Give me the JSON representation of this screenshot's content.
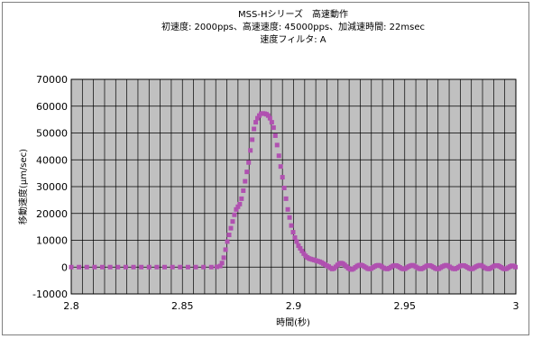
{
  "chart_data": {
    "type": "scatter",
    "title_lines": [
      "MSS-Hシリーズ　高速動作",
      "初速度: 2000pps、高速速度: 45000pps、加減速時間: 22msec",
      "速度フィルタ: A"
    ],
    "xlabel": "時間(秒)",
    "ylabel": "移動速度(μm/sec)",
    "xlim": [
      2.8,
      3.0
    ],
    "ylim": [
      -10000,
      70000
    ],
    "xticks": [
      "2.8",
      "2.85",
      "2.9",
      "2.95",
      "3"
    ],
    "xtick_values": [
      2.8,
      2.85,
      2.9,
      2.95,
      3.0
    ],
    "yticks": [
      "70000",
      "60000",
      "50000",
      "40000",
      "30000",
      "20000",
      "10000",
      "0",
      "-10000"
    ],
    "ytick_values": [
      70000,
      60000,
      50000,
      40000,
      30000,
      20000,
      10000,
      0,
      -10000
    ],
    "grid": true,
    "x_minor_step": 0.005,
    "marker_color": "#b051b0",
    "series": [
      {
        "marker": "square",
        "points": [
          [
            2.8,
            0
          ],
          [
            2.8035,
            0
          ],
          [
            2.807,
            0
          ],
          [
            2.8105,
            0
          ],
          [
            2.814,
            0
          ],
          [
            2.8175,
            0
          ],
          [
            2.821,
            0
          ],
          [
            2.8245,
            0
          ],
          [
            2.828,
            0
          ],
          [
            2.8315,
            0
          ],
          [
            2.835,
            0
          ],
          [
            2.8385,
            0
          ],
          [
            2.842,
            0
          ],
          [
            2.8455,
            0
          ],
          [
            2.849,
            0
          ],
          [
            2.8525,
            0
          ],
          [
            2.856,
            0
          ],
          [
            2.8595,
            0
          ],
          [
            2.863,
            0
          ],
          [
            2.8655,
            100
          ],
          [
            2.867,
            400
          ],
          [
            2.8678,
            1500
          ],
          [
            2.8686,
            3500
          ],
          [
            2.8694,
            6500
          ],
          [
            2.8702,
            9500
          ],
          [
            2.871,
            12000
          ],
          [
            2.8718,
            14500
          ],
          [
            2.8726,
            17000
          ],
          [
            2.8734,
            19500
          ],
          [
            2.8742,
            21500
          ],
          [
            2.875,
            22500
          ],
          [
            2.8758,
            23500
          ],
          [
            2.8766,
            25500
          ],
          [
            2.8774,
            28500
          ],
          [
            2.8782,
            32000
          ],
          [
            2.879,
            35500
          ],
          [
            2.8798,
            39000
          ],
          [
            2.8806,
            43500
          ],
          [
            2.8814,
            47500
          ],
          [
            2.8822,
            51500
          ],
          [
            2.883,
            54000
          ],
          [
            2.8838,
            55500
          ],
          [
            2.8846,
            56500
          ],
          [
            2.8854,
            57200
          ],
          [
            2.8862,
            57300
          ],
          [
            2.887,
            57200
          ],
          [
            2.8878,
            57000
          ],
          [
            2.8886,
            56500
          ],
          [
            2.8894,
            55500
          ],
          [
            2.8902,
            54000
          ],
          [
            2.891,
            52000
          ],
          [
            2.8918,
            49000
          ],
          [
            2.8926,
            45500
          ],
          [
            2.8934,
            41500
          ],
          [
            2.8942,
            37500
          ],
          [
            2.895,
            33500
          ],
          [
            2.8958,
            29500
          ],
          [
            2.8966,
            25500
          ],
          [
            2.8974,
            21500
          ],
          [
            2.8982,
            18500
          ],
          [
            2.899,
            15500
          ],
          [
            2.8998,
            13000
          ],
          [
            2.9006,
            11000
          ],
          [
            2.9014,
            9500
          ],
          [
            2.9022,
            8000
          ],
          [
            2.903,
            7000
          ],
          [
            2.9038,
            6000
          ],
          [
            2.9046,
            5000
          ],
          [
            2.9054,
            4200
          ],
          [
            2.9062,
            3600
          ],
          [
            2.907,
            3200
          ],
          [
            2.9078,
            3000
          ],
          [
            2.9086,
            2800
          ],
          [
            2.9094,
            2600
          ],
          [
            2.9102,
            2400
          ],
          [
            2.911,
            2200
          ],
          [
            2.9118,
            2000
          ],
          [
            2.9126,
            1700
          ],
          [
            2.9134,
            1300
          ],
          [
            2.9142,
            900
          ],
          [
            2.915,
            500
          ],
          [
            2.9158,
            200
          ],
          [
            2.9166,
            -300
          ],
          [
            2.9174,
            -700
          ],
          [
            2.9182,
            -500
          ],
          [
            2.919,
            100
          ],
          [
            2.9198,
            800
          ],
          [
            2.9206,
            1300
          ],
          [
            2.9214,
            1500
          ],
          [
            2.9222,
            1300
          ],
          [
            2.923,
            800
          ],
          [
            2.9238,
            200
          ],
          [
            2.9246,
            -400
          ],
          [
            2.9254,
            -800
          ],
          [
            2.9262,
            -900
          ],
          [
            2.927,
            -600
          ],
          [
            2.9278,
            -100
          ],
          [
            2.9286,
            400
          ],
          [
            2.9294,
            700
          ],
          [
            2.9302,
            800
          ],
          [
            2.931,
            600
          ],
          [
            2.9318,
            200
          ],
          [
            2.9326,
            -200
          ],
          [
            2.9334,
            -600
          ],
          [
            2.9342,
            -700
          ],
          [
            2.935,
            -500
          ],
          [
            2.9358,
            -100
          ],
          [
            2.9366,
            300
          ],
          [
            2.9374,
            600
          ],
          [
            2.9382,
            700
          ],
          [
            2.939,
            500
          ],
          [
            2.9398,
            100
          ],
          [
            2.9406,
            -300
          ],
          [
            2.9414,
            -600
          ],
          [
            2.9422,
            -700
          ],
          [
            2.943,
            -400
          ],
          [
            2.9438,
            0
          ],
          [
            2.9446,
            400
          ],
          [
            2.9454,
            600
          ],
          [
            2.9462,
            600
          ],
          [
            2.947,
            300
          ],
          [
            2.9478,
            -100
          ],
          [
            2.9486,
            -500
          ],
          [
            2.9494,
            -700
          ],
          [
            2.9502,
            -600
          ],
          [
            2.951,
            -200
          ],
          [
            2.9518,
            200
          ],
          [
            2.9526,
            500
          ],
          [
            2.9534,
            700
          ],
          [
            2.9542,
            500
          ],
          [
            2.955,
            100
          ],
          [
            2.9558,
            -300
          ],
          [
            2.9566,
            -600
          ],
          [
            2.9574,
            -700
          ],
          [
            2.9582,
            -400
          ],
          [
            2.959,
            0
          ],
          [
            2.9598,
            400
          ],
          [
            2.9606,
            600
          ],
          [
            2.9614,
            600
          ],
          [
            2.9622,
            300
          ],
          [
            2.963,
            -100
          ],
          [
            2.9638,
            -500
          ],
          [
            2.9646,
            -700
          ],
          [
            2.9654,
            -600
          ],
          [
            2.9662,
            -200
          ],
          [
            2.967,
            200
          ],
          [
            2.9678,
            500
          ],
          [
            2.9686,
            700
          ],
          [
            2.9694,
            500
          ],
          [
            2.9702,
            100
          ],
          [
            2.971,
            -300
          ],
          [
            2.9718,
            -600
          ],
          [
            2.9726,
            -700
          ],
          [
            2.9734,
            -400
          ],
          [
            2.9742,
            0
          ],
          [
            2.975,
            400
          ],
          [
            2.9758,
            600
          ],
          [
            2.9766,
            600
          ],
          [
            2.9774,
            300
          ],
          [
            2.9782,
            -100
          ],
          [
            2.979,
            -500
          ],
          [
            2.9798,
            -700
          ],
          [
            2.9806,
            -600
          ],
          [
            2.9814,
            -200
          ],
          [
            2.9822,
            200
          ],
          [
            2.983,
            500
          ],
          [
            2.9838,
            700
          ],
          [
            2.9846,
            500
          ],
          [
            2.9854,
            100
          ],
          [
            2.9862,
            -300
          ],
          [
            2.987,
            -600
          ],
          [
            2.9878,
            -700
          ],
          [
            2.9886,
            -400
          ],
          [
            2.9894,
            0
          ],
          [
            2.9902,
            400
          ],
          [
            2.991,
            600
          ],
          [
            2.9918,
            600
          ],
          [
            2.9926,
            300
          ],
          [
            2.9934,
            -100
          ],
          [
            2.9942,
            -500
          ],
          [
            2.995,
            -700
          ],
          [
            2.9958,
            -600
          ],
          [
            2.9966,
            -200
          ],
          [
            2.9974,
            200
          ],
          [
            2.9982,
            500
          ],
          [
            2.999,
            400
          ],
          [
            2.9998,
            0
          ]
        ]
      }
    ]
  }
}
